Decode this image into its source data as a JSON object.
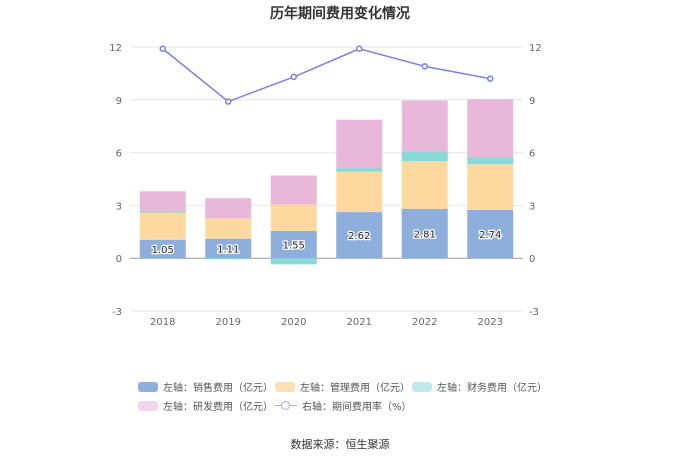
{
  "chart_data": {
    "type": "bar+line",
    "title": "历年期间费用变化情况",
    "categories": [
      "2018",
      "2019",
      "2020",
      "2021",
      "2022",
      "2023"
    ],
    "left_axis": {
      "ylim": [
        -3,
        12
      ],
      "ticks": [
        "-3",
        "0",
        "3",
        "6",
        "9",
        "12"
      ]
    },
    "right_axis": {
      "ylim": [
        -3,
        12
      ],
      "ticks": [
        "-3",
        "0",
        "3",
        "6",
        "9",
        "12"
      ]
    },
    "series": [
      {
        "name": "左轴：销售费用（亿元）",
        "type": "bar",
        "color": "#8eaedc",
        "values": [
          1.05,
          1.11,
          1.55,
          2.62,
          2.81,
          2.74
        ],
        "labels": [
          "1.05",
          "1.11",
          "1.55",
          "2.62",
          "2.81",
          "2.74"
        ]
      },
      {
        "name": "左轴：管理费用（亿元）",
        "type": "bar",
        "color": "#fdd9a0",
        "values": [
          1.55,
          1.15,
          1.5,
          2.3,
          2.7,
          2.6
        ]
      },
      {
        "name": "左轴：财务费用（亿元）",
        "type": "bar",
        "color": "#8ad8d8",
        "values": [
          0.1,
          -0.05,
          -0.35,
          0.2,
          0.55,
          0.4
        ]
      },
      {
        "name": "左轴：研发费用（亿元）",
        "type": "bar",
        "color": "#e8b8da",
        "values": [
          1.1,
          1.15,
          1.65,
          2.75,
          2.9,
          3.3
        ]
      },
      {
        "name": "右轴：期间费用率（%）",
        "type": "line",
        "color": "#7b7ee6",
        "values": [
          11.9,
          8.9,
          10.3,
          11.9,
          10.9,
          10.2
        ]
      }
    ]
  },
  "source": "数据来源：恒生聚源"
}
